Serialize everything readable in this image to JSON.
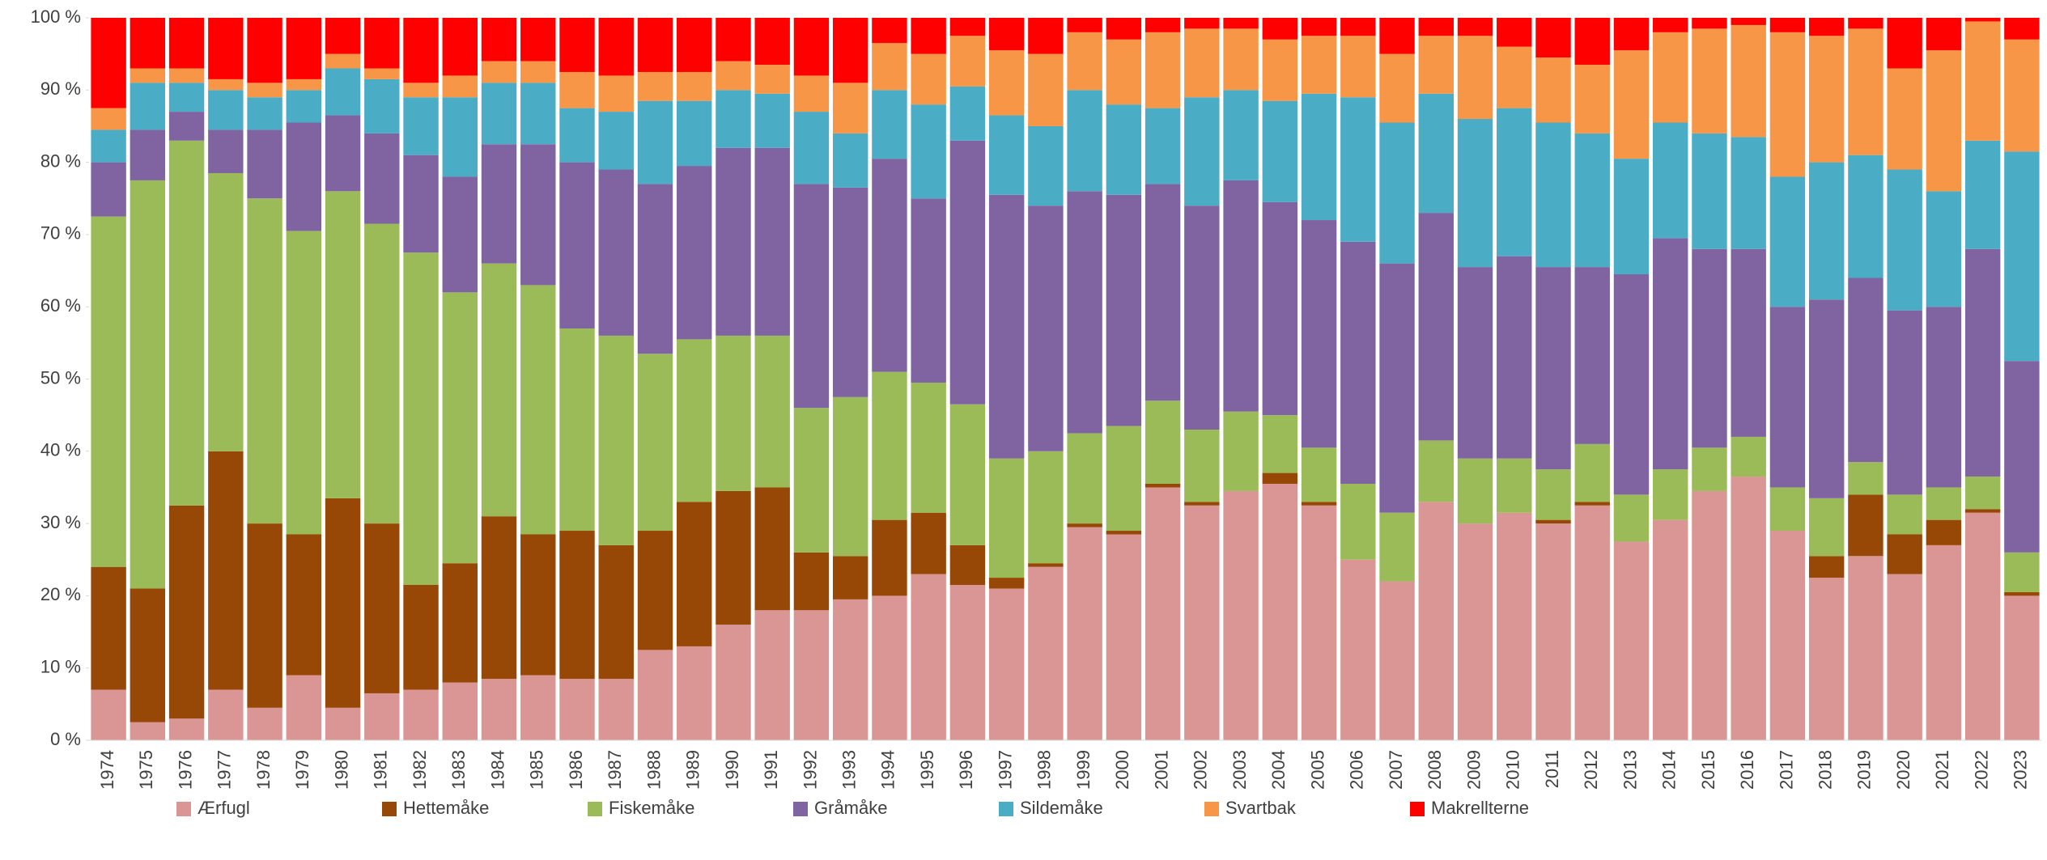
{
  "chart_data": {
    "type": "stacked_bar_100",
    "categories": [
      "1974",
      "1975",
      "1976",
      "1977",
      "1978",
      "1979",
      "1980",
      "1981",
      "1982",
      "1983",
      "1984",
      "1985",
      "1986",
      "1987",
      "1988",
      "1989",
      "1990",
      "1991",
      "1992",
      "1993",
      "1994",
      "1995",
      "1996",
      "1997",
      "1998",
      "1999",
      "2000",
      "2001",
      "2002",
      "2003",
      "2004",
      "2005",
      "2006",
      "2007",
      "2008",
      "2009",
      "2010",
      "2011",
      "2012",
      "2013",
      "2014",
      "2015",
      "2016",
      "2017",
      "2018",
      "2019",
      "2020",
      "2021",
      "2022",
      "2023"
    ],
    "series": [
      {
        "name": "Ærfugl",
        "color": "#d99694",
        "values": [
          7,
          2.5,
          3,
          7,
          4.5,
          9,
          4.5,
          6.5,
          7,
          8,
          8.5,
          9,
          8.5,
          8.5,
          12.5,
          13,
          16,
          18,
          18,
          19.5,
          20,
          23,
          21.5,
          21,
          24,
          29.5,
          28.5,
          35,
          32.5,
          34.5,
          35.5,
          32.5,
          25,
          22,
          33,
          30,
          31.5,
          30,
          32.5,
          27.5,
          30.5,
          34.5,
          36.5,
          29,
          22.5,
          25.5,
          23,
          27,
          31.5,
          20
        ]
      },
      {
        "name": "Hettemåke",
        "color": "#974706",
        "values": [
          17,
          18.5,
          29.5,
          33,
          25.5,
          19.5,
          29,
          23.5,
          14.5,
          16.5,
          22.5,
          19.5,
          20.5,
          18.5,
          16.5,
          20,
          18.5,
          17,
          8,
          6,
          10.5,
          8.5,
          5.5,
          1.5,
          0.5,
          0.5,
          0.5,
          0.5,
          0.5,
          0,
          1.5,
          0.5,
          0,
          0,
          0,
          0,
          0,
          0.5,
          0.5,
          0,
          0,
          0,
          0,
          0,
          3,
          8.5,
          5.5,
          3.5,
          0.5,
          0.5
        ]
      },
      {
        "name": "Fiskemåke",
        "color": "#9bbb59",
        "values": [
          48.5,
          56.5,
          50.5,
          38.5,
          45,
          42,
          42.5,
          41.5,
          46,
          37.5,
          35,
          34.5,
          28,
          29,
          24.5,
          22.5,
          21.5,
          21,
          20,
          22,
          20.5,
          18,
          19.5,
          16.5,
          15.5,
          12.5,
          14.5,
          11.5,
          10,
          11,
          8,
          7.5,
          10.5,
          9.5,
          8.5,
          9,
          7.5,
          7,
          8,
          6.5,
          7,
          6,
          5.5,
          6,
          8,
          4.5,
          5.5,
          4.5,
          4.5,
          5.5
        ]
      },
      {
        "name": "Gråmåke",
        "color": "#8064a2",
        "values": [
          7.5,
          7,
          4,
          6,
          9.5,
          15,
          10.5,
          12.5,
          13.5,
          16,
          16.5,
          19.5,
          23,
          23,
          23.5,
          24,
          26,
          26,
          31,
          29,
          29.5,
          25.5,
          36.5,
          36.5,
          34,
          33.5,
          32,
          30,
          31,
          32,
          29.5,
          31.5,
          33.5,
          34.5,
          31.5,
          26.5,
          28,
          28,
          24.5,
          30.5,
          32,
          27.5,
          26,
          25,
          27.5,
          25.5,
          25.5,
          25,
          31.5,
          26.5
        ]
      },
      {
        "name": "Sildemåke",
        "color": "#4bacc6",
        "values": [
          4.5,
          6.5,
          4,
          5.5,
          4.5,
          4.5,
          6.5,
          7.5,
          8,
          11,
          8.5,
          8.5,
          7.5,
          8,
          11.5,
          9,
          8,
          7.5,
          10,
          7.5,
          9.5,
          13,
          7.5,
          11,
          11,
          14,
          12.5,
          10.5,
          15,
          12.5,
          14,
          17.5,
          20,
          19.5,
          16.5,
          20.5,
          20.5,
          20,
          18.5,
          16,
          16,
          16,
          15.5,
          18,
          19,
          17,
          19.5,
          16,
          15,
          29
        ]
      },
      {
        "name": "Svartbak",
        "color": "#f79646",
        "values": [
          3,
          2,
          2,
          1.5,
          2,
          1.5,
          2,
          1.5,
          2,
          3,
          3,
          3,
          5,
          5,
          4,
          4,
          4,
          4,
          5,
          7,
          6.5,
          7,
          7,
          9,
          10,
          8,
          9,
          10.5,
          9.5,
          8.5,
          8.5,
          8,
          8.5,
          9.5,
          8,
          11.5,
          8.5,
          9,
          9.5,
          15,
          12.5,
          14.5,
          15.5,
          20,
          17.5,
          17.5,
          14,
          19.5,
          16.5,
          15.5
        ]
      },
      {
        "name": "Makrellterne",
        "color": "#ff0000",
        "values": [
          12.5,
          7,
          7,
          8.5,
          9,
          8.5,
          5,
          7,
          9,
          8,
          6,
          6,
          7.5,
          8,
          7.5,
          7.5,
          6,
          6.5,
          8,
          9,
          3.5,
          5,
          2.5,
          4.5,
          5,
          2,
          3,
          2,
          1.5,
          1.5,
          3,
          2.5,
          2.5,
          5,
          2.5,
          2.5,
          4,
          5.5,
          6.5,
          4.5,
          2,
          1.5,
          1,
          2,
          2.5,
          1.5,
          7,
          4.5,
          0.5,
          3
        ]
      }
    ],
    "ylim": [
      0,
      100
    ],
    "yticks": [
      {
        "value": 0,
        "label": "0 %"
      },
      {
        "value": 10,
        "label": "10 %"
      },
      {
        "value": 20,
        "label": "20 %"
      },
      {
        "value": 30,
        "label": "30 %"
      },
      {
        "value": 40,
        "label": "40 %"
      },
      {
        "value": 50,
        "label": "50 %"
      },
      {
        "value": 60,
        "label": "60 %"
      },
      {
        "value": 70,
        "label": "70 %"
      },
      {
        "value": 80,
        "label": "80 %"
      },
      {
        "value": 90,
        "label": "90 %"
      },
      {
        "value": 100,
        "label": "100 %"
      }
    ],
    "grid": false,
    "legend": "bottom"
  }
}
